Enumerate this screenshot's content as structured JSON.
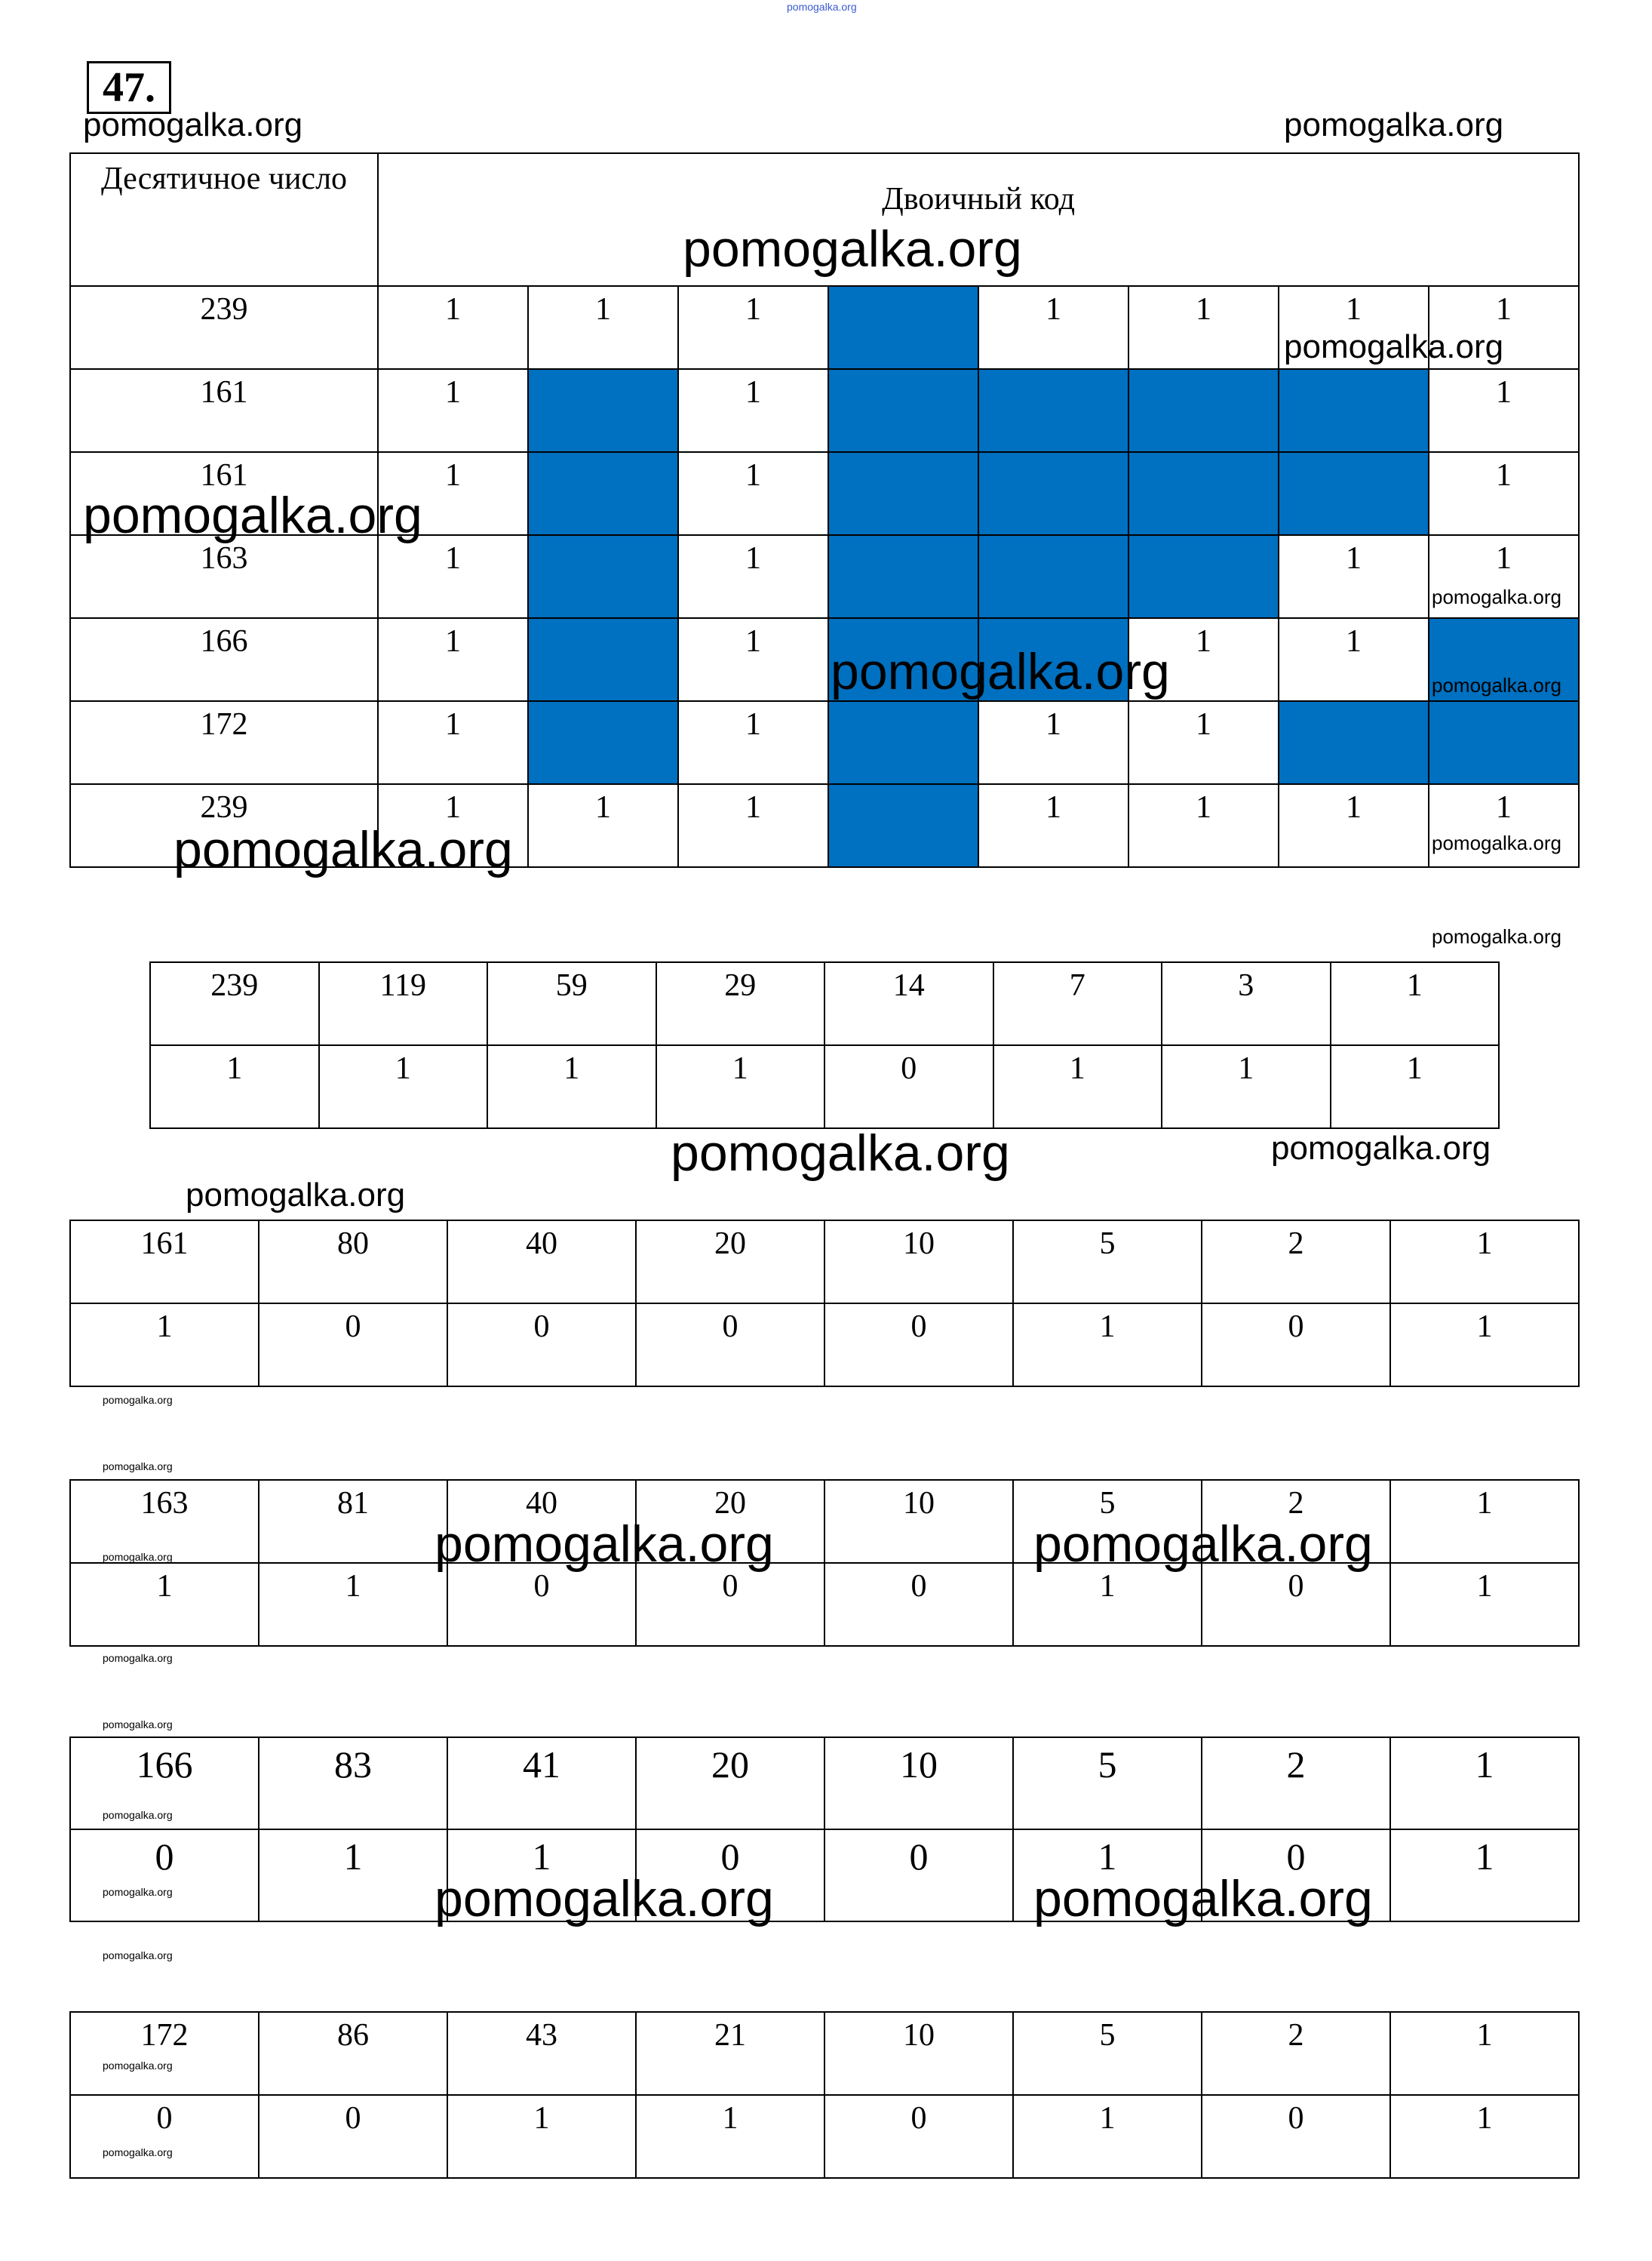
{
  "task_number": "47.",
  "main_table": {
    "header_decimal": "Десятичное число",
    "header_binary": "Двоичный код",
    "fill_color": "#0070c0",
    "rows": [
      {
        "decimal": "239",
        "cells": [
          "1",
          "1",
          "1",
          null,
          "1",
          "1",
          "1",
          "1"
        ]
      },
      {
        "decimal": "161",
        "cells": [
          "1",
          null,
          "1",
          null,
          null,
          null,
          null,
          "1"
        ]
      },
      {
        "decimal": "161",
        "cells": [
          "1",
          null,
          "1",
          null,
          null,
          null,
          null,
          "1"
        ]
      },
      {
        "decimal": "163",
        "cells": [
          "1",
          null,
          "1",
          null,
          null,
          null,
          "1",
          "1"
        ]
      },
      {
        "decimal": "166",
        "cells": [
          "1",
          null,
          "1",
          null,
          null,
          "1",
          "1",
          null
        ]
      },
      {
        "decimal": "172",
        "cells": [
          "1",
          null,
          "1",
          null,
          "1",
          "1",
          null,
          null
        ]
      },
      {
        "decimal": "239",
        "cells": [
          "1",
          "1",
          "1",
          null,
          "1",
          "1",
          "1",
          "1"
        ]
      }
    ]
  },
  "division_tables": [
    {
      "quotients": [
        "239",
        "119",
        "59",
        "29",
        "14",
        "7",
        "3",
        "1"
      ],
      "remainders": [
        "1",
        "1",
        "1",
        "1",
        "0",
        "1",
        "1",
        "1"
      ]
    },
    {
      "quotients": [
        "161",
        "80",
        "40",
        "20",
        "10",
        "5",
        "2",
        "1"
      ],
      "remainders": [
        "1",
        "0",
        "0",
        "0",
        "0",
        "1",
        "0",
        "1"
      ]
    },
    {
      "quotients": [
        "163",
        "81",
        "40",
        "20",
        "10",
        "5",
        "2",
        "1"
      ],
      "remainders": [
        "1",
        "1",
        "0",
        "0",
        "0",
        "1",
        "0",
        "1"
      ]
    },
    {
      "quotients": [
        "166",
        "83",
        "41",
        "20",
        "10",
        "5",
        "2",
        "1"
      ],
      "remainders": [
        "0",
        "1",
        "1",
        "0",
        "0",
        "1",
        "0",
        "1"
      ]
    },
    {
      "quotients": [
        "172",
        "86",
        "43",
        "21",
        "10",
        "5",
        "2",
        "1"
      ],
      "remainders": [
        "0",
        "0",
        "1",
        "1",
        "0",
        "1",
        "0",
        "1"
      ]
    }
  ],
  "watermarks": [
    "pomogalka.org",
    "pomogalka.org",
    "pomogalka.org",
    "pomogalka.org",
    "pomogalka.org",
    "pomogalka.org",
    "pomogalka.org",
    "pomogalka.org",
    "pomogalka.org",
    "pomogalka.org",
    "pomogalka.org",
    "pomogalka.org",
    "pomogalka.org",
    "pomogalka.org",
    "pomogalka.org",
    "pomogalka.org",
    "pomogalka.org",
    "pomogalka.org",
    "pomogalka.org",
    "pomogalka.org",
    "pomogalka.org",
    "pomogalka.org",
    "pomogalka.org",
    "pomogalka.org",
    "pomogalka.org",
    "pomogalka.org",
    "pomogalka.org",
    "pomogalka.org",
    "pomogalka.org"
  ]
}
